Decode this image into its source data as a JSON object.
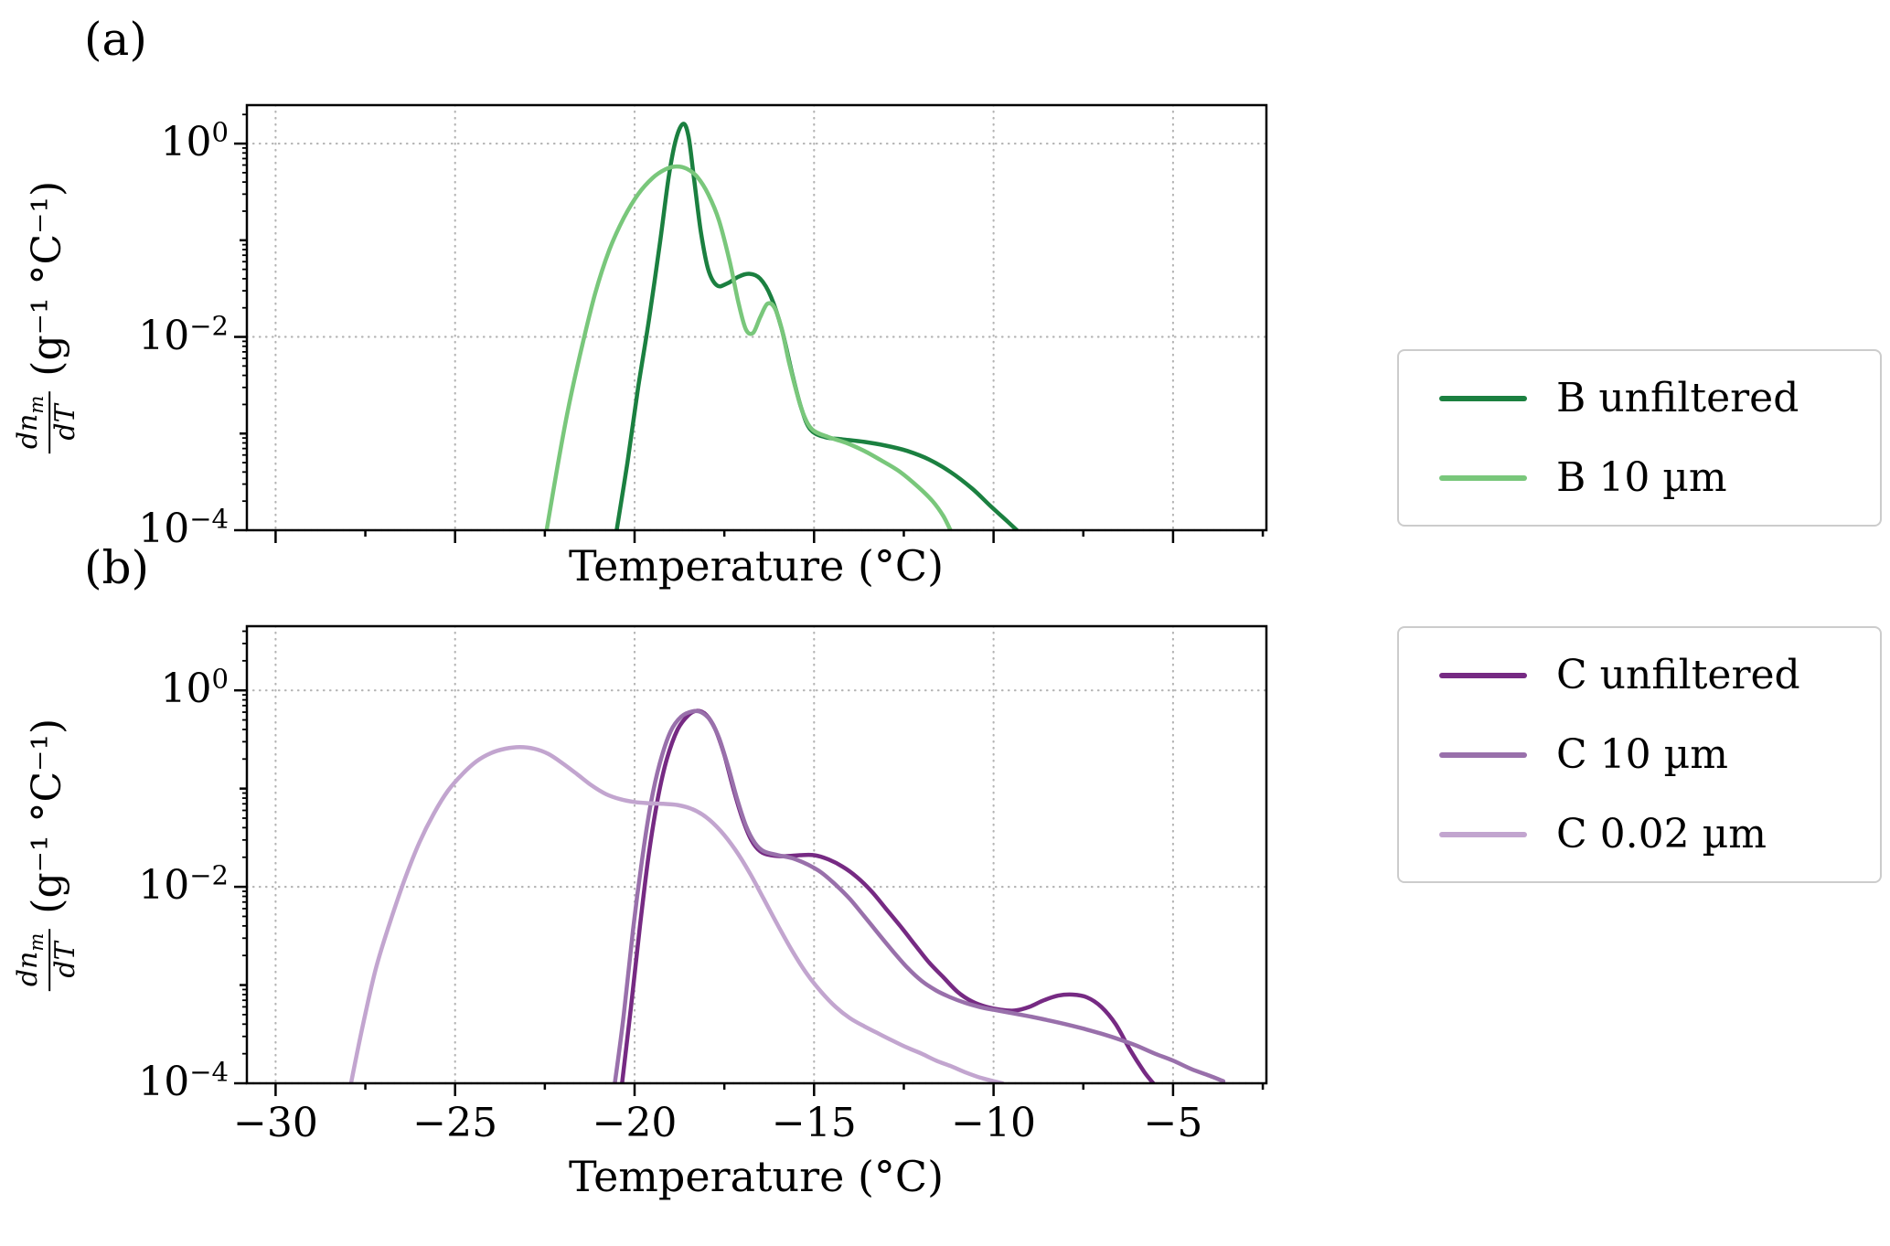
{
  "figure": {
    "background": "#ffffff",
    "panels": [
      {
        "tag": "(a)",
        "xlabel": "Temperature (°C)",
        "ylabel": {
          "numerator": "dn",
          "numerator_sub": "m",
          "denominator": "dT",
          "units": "(g⁻¹ °C⁻¹)"
        }
      },
      {
        "tag": "(b)",
        "xlabel": "Temperature (°C)",
        "ylabel": {
          "numerator": "dn",
          "numerator_sub": "m",
          "denominator": "dT",
          "units": "(g⁻¹ °C⁻¹)"
        }
      }
    ],
    "legends": [
      {
        "items": [
          {
            "label": "B unfiltered",
            "color": "#1b8040"
          },
          {
            "label": "B 10 µm",
            "color": "#79c77b"
          }
        ]
      },
      {
        "items": [
          {
            "label": "C unfiltered",
            "color": "#762a83"
          },
          {
            "label": "C 10 µm",
            "color": "#9970ab"
          },
          {
            "label": "C 0.02 µm",
            "color": "#c2a5cf"
          }
        ]
      }
    ]
  },
  "chart_data": [
    {
      "type": "line",
      "title": "",
      "xlabel": "Temperature (°C)",
      "ylabel": "dn_m/dT (g^-1 °C^-1)",
      "xscale": "linear",
      "yscale": "log",
      "xlim": [
        -30.8,
        -2.4
      ],
      "ylim": [
        0.0001,
        2.5
      ],
      "xticks": [
        -30,
        -25,
        -20,
        -15,
        -10,
        -5
      ],
      "ytick_exponents": [
        0,
        -2,
        -4
      ],
      "grid": true,
      "legend_position": "outside-right",
      "series": [
        {
          "name": "B unfiltered",
          "color": "#1b8040",
          "linewidth": 4.5,
          "points": [
            [
              -20.5,
              0.0001
            ],
            [
              -20.2,
              0.0005
            ],
            [
              -19.9,
              0.003
            ],
            [
              -19.6,
              0.015
            ],
            [
              -19.3,
              0.09
            ],
            [
              -19.05,
              0.45
            ],
            [
              -18.85,
              1.1
            ],
            [
              -18.65,
              1.6
            ],
            [
              -18.5,
              1.2
            ],
            [
              -18.35,
              0.45
            ],
            [
              -18.15,
              0.12
            ],
            [
              -17.95,
              0.05
            ],
            [
              -17.7,
              0.034
            ],
            [
              -17.4,
              0.036
            ],
            [
              -17.1,
              0.042
            ],
            [
              -16.8,
              0.045
            ],
            [
              -16.5,
              0.04
            ],
            [
              -16.2,
              0.026
            ],
            [
              -15.9,
              0.012
            ],
            [
              -15.6,
              0.004
            ],
            [
              -15.35,
              0.0018
            ],
            [
              -15.1,
              0.0011
            ],
            [
              -14.7,
              0.00092
            ],
            [
              -14.2,
              0.00087
            ],
            [
              -13.6,
              0.00082
            ],
            [
              -13.0,
              0.00075
            ],
            [
              -12.4,
              0.00066
            ],
            [
              -11.8,
              0.00054
            ],
            [
              -11.2,
              0.0004
            ],
            [
              -10.6,
              0.00027
            ],
            [
              -10.1,
              0.00018
            ],
            [
              -9.6,
              0.000122
            ],
            [
              -9.35,
              0.0001
            ]
          ]
        },
        {
          "name": "B 10 µm",
          "color": "#79c77b",
          "linewidth": 4.5,
          "points": [
            [
              -22.45,
              0.0001
            ],
            [
              -22.15,
              0.00045
            ],
            [
              -21.85,
              0.0018
            ],
            [
              -21.5,
              0.007
            ],
            [
              -21.1,
              0.028
            ],
            [
              -20.7,
              0.08
            ],
            [
              -20.3,
              0.17
            ],
            [
              -19.9,
              0.3
            ],
            [
              -19.5,
              0.44
            ],
            [
              -19.15,
              0.54
            ],
            [
              -18.85,
              0.58
            ],
            [
              -18.55,
              0.55
            ],
            [
              -18.25,
              0.45
            ],
            [
              -17.95,
              0.3
            ],
            [
              -17.65,
              0.16
            ],
            [
              -17.35,
              0.06
            ],
            [
              -17.1,
              0.022
            ],
            [
              -16.9,
              0.012
            ],
            [
              -16.7,
              0.011
            ],
            [
              -16.5,
              0.016
            ],
            [
              -16.3,
              0.022
            ],
            [
              -16.1,
              0.02
            ],
            [
              -15.9,
              0.012
            ],
            [
              -15.7,
              0.0055
            ],
            [
              -15.5,
              0.0028
            ],
            [
              -15.3,
              0.0016
            ],
            [
              -15.05,
              0.0011
            ],
            [
              -14.6,
              0.00092
            ],
            [
              -14.1,
              0.0008
            ],
            [
              -13.6,
              0.00066
            ],
            [
              -13.1,
              0.00052
            ],
            [
              -12.6,
              0.0004
            ],
            [
              -12.1,
              0.00028
            ],
            [
              -11.7,
              0.0002
            ],
            [
              -11.4,
              0.00014
            ],
            [
              -11.2,
              0.0001
            ]
          ]
        }
      ]
    },
    {
      "type": "line",
      "title": "",
      "xlabel": "Temperature (°C)",
      "ylabel": "dn_m/dT (g^-1 °C^-1)",
      "xscale": "linear",
      "yscale": "log",
      "xlim": [
        -30.8,
        -2.4
      ],
      "ylim": [
        0.0001,
        4.5
      ],
      "xticks": [
        -30,
        -25,
        -20,
        -15,
        -10,
        -5
      ],
      "xtick_labels": [
        "−30",
        "−25",
        "−20",
        "−15",
        "−10",
        "−5"
      ],
      "ytick_exponents": [
        0,
        -2,
        -4
      ],
      "grid": true,
      "legend_position": "outside-right",
      "series": [
        {
          "name": "C unfiltered",
          "color": "#762a83",
          "linewidth": 4.5,
          "points": [
            [
              -20.35,
              0.0001
            ],
            [
              -20.1,
              0.0006
            ],
            [
              -19.85,
              0.004
            ],
            [
              -19.6,
              0.022
            ],
            [
              -19.35,
              0.08
            ],
            [
              -19.1,
              0.2
            ],
            [
              -18.8,
              0.4
            ],
            [
              -18.5,
              0.56
            ],
            [
              -18.25,
              0.62
            ],
            [
              -18.0,
              0.56
            ],
            [
              -17.75,
              0.4
            ],
            [
              -17.5,
              0.22
            ],
            [
              -17.25,
              0.1
            ],
            [
              -17.0,
              0.05
            ],
            [
              -16.75,
              0.03
            ],
            [
              -16.5,
              0.023
            ],
            [
              -16.2,
              0.021
            ],
            [
              -15.8,
              0.0205
            ],
            [
              -15.4,
              0.021
            ],
            [
              -15.0,
              0.021
            ],
            [
              -14.6,
              0.019
            ],
            [
              -14.2,
              0.016
            ],
            [
              -13.8,
              0.0125
            ],
            [
              -13.4,
              0.009
            ],
            [
              -13.0,
              0.006
            ],
            [
              -12.6,
              0.004
            ],
            [
              -12.2,
              0.0026
            ],
            [
              -11.8,
              0.0017
            ],
            [
              -11.4,
              0.0012
            ],
            [
              -11.0,
              0.00085
            ],
            [
              -10.6,
              0.00068
            ],
            [
              -10.2,
              0.0006
            ],
            [
              -9.8,
              0.00056
            ],
            [
              -9.4,
              0.00055
            ],
            [
              -9.0,
              0.0006
            ],
            [
              -8.6,
              0.0007
            ],
            [
              -8.2,
              0.00078
            ],
            [
              -7.8,
              0.0008
            ],
            [
              -7.4,
              0.00075
            ],
            [
              -7.0,
              0.0006
            ],
            [
              -6.6,
              0.0004
            ],
            [
              -6.2,
              0.00022
            ],
            [
              -5.8,
              0.00013
            ],
            [
              -5.55,
              0.0001
            ]
          ]
        },
        {
          "name": "C 10 µm",
          "color": "#9970ab",
          "linewidth": 4.5,
          "points": [
            [
              -20.55,
              0.0001
            ],
            [
              -20.3,
              0.0005
            ],
            [
              -20.05,
              0.0035
            ],
            [
              -19.8,
              0.018
            ],
            [
              -19.55,
              0.07
            ],
            [
              -19.3,
              0.18
            ],
            [
              -19.0,
              0.38
            ],
            [
              -18.7,
              0.54
            ],
            [
              -18.4,
              0.61
            ],
            [
              -18.15,
              0.6
            ],
            [
              -17.9,
              0.5
            ],
            [
              -17.65,
              0.33
            ],
            [
              -17.4,
              0.17
            ],
            [
              -17.15,
              0.08
            ],
            [
              -16.9,
              0.042
            ],
            [
              -16.65,
              0.028
            ],
            [
              -16.4,
              0.023
            ],
            [
              -16.0,
              0.021
            ],
            [
              -15.6,
              0.0195
            ],
            [
              -15.2,
              0.017
            ],
            [
              -14.8,
              0.014
            ],
            [
              -14.4,
              0.0105
            ],
            [
              -14.0,
              0.0075
            ],
            [
              -13.6,
              0.005
            ],
            [
              -13.2,
              0.0033
            ],
            [
              -12.8,
              0.0022
            ],
            [
              -12.4,
              0.0015
            ],
            [
              -12.0,
              0.0011
            ],
            [
              -11.6,
              0.00088
            ],
            [
              -11.2,
              0.00075
            ],
            [
              -10.8,
              0.00066
            ],
            [
              -10.4,
              0.0006
            ],
            [
              -10.0,
              0.00056
            ],
            [
              -9.5,
              0.00052
            ],
            [
              -9.0,
              0.00048
            ],
            [
              -8.5,
              0.00044
            ],
            [
              -8.0,
              0.0004
            ],
            [
              -7.5,
              0.00036
            ],
            [
              -7.0,
              0.00032
            ],
            [
              -6.5,
              0.00028
            ],
            [
              -6.0,
              0.00024
            ],
            [
              -5.5,
              0.0002
            ],
            [
              -5.0,
              0.00017
            ],
            [
              -4.5,
              0.00014
            ],
            [
              -4.0,
              0.00012
            ],
            [
              -3.6,
              0.000105
            ]
          ]
        },
        {
          "name": "C 0.02 µm",
          "color": "#c2a5cf",
          "linewidth": 4.5,
          "points": [
            [
              -27.9,
              0.0001
            ],
            [
              -27.55,
              0.00042
            ],
            [
              -27.2,
              0.0015
            ],
            [
              -26.8,
              0.0045
            ],
            [
              -26.4,
              0.012
            ],
            [
              -26.0,
              0.028
            ],
            [
              -25.6,
              0.055
            ],
            [
              -25.2,
              0.095
            ],
            [
              -24.8,
              0.14
            ],
            [
              -24.4,
              0.19
            ],
            [
              -24.0,
              0.23
            ],
            [
              -23.6,
              0.255
            ],
            [
              -23.2,
              0.265
            ],
            [
              -22.8,
              0.255
            ],
            [
              -22.4,
              0.225
            ],
            [
              -22.0,
              0.18
            ],
            [
              -21.6,
              0.14
            ],
            [
              -21.2,
              0.108
            ],
            [
              -20.8,
              0.088
            ],
            [
              -20.4,
              0.078
            ],
            [
              -20.0,
              0.073
            ],
            [
              -19.6,
              0.071
            ],
            [
              -19.2,
              0.07
            ],
            [
              -18.8,
              0.068
            ],
            [
              -18.4,
              0.062
            ],
            [
              -18.0,
              0.051
            ],
            [
              -17.6,
              0.037
            ],
            [
              -17.2,
              0.024
            ],
            [
              -16.8,
              0.014
            ],
            [
              -16.4,
              0.0075
            ],
            [
              -16.0,
              0.004
            ],
            [
              -15.6,
              0.0022
            ],
            [
              -15.2,
              0.0013
            ],
            [
              -14.8,
              0.00085
            ],
            [
              -14.4,
              0.0006
            ],
            [
              -14.0,
              0.00046
            ],
            [
              -13.6,
              0.00038
            ],
            [
              -13.2,
              0.00032
            ],
            [
              -12.8,
              0.00027
            ],
            [
              -12.4,
              0.00023
            ],
            [
              -12.0,
              0.0002
            ],
            [
              -11.6,
              0.00017
            ],
            [
              -11.2,
              0.00015
            ],
            [
              -10.8,
              0.00013
            ],
            [
              -10.4,
              0.000115
            ],
            [
              -10.0,
              0.000105
            ],
            [
              -9.75,
              0.0001
            ]
          ]
        }
      ]
    }
  ]
}
